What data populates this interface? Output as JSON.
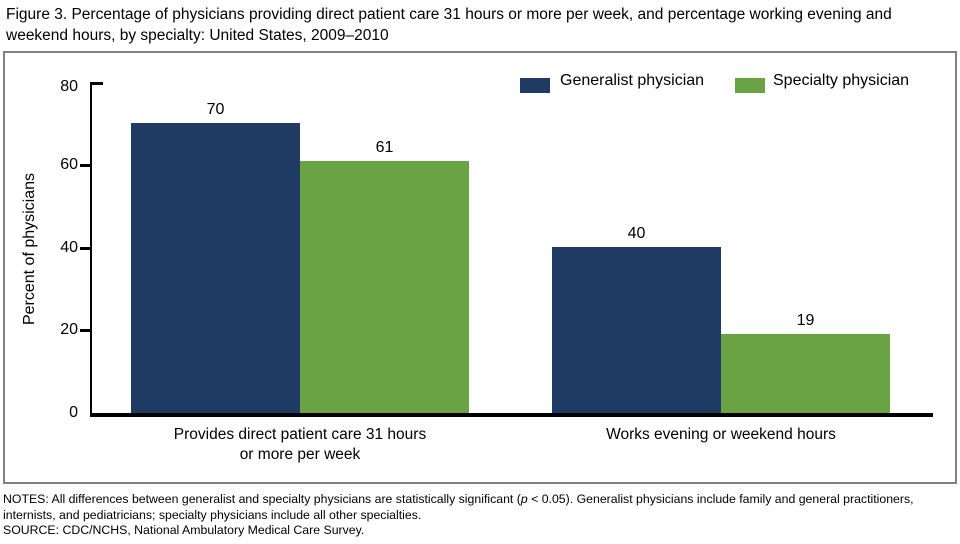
{
  "page": {
    "title": "Figure 3. Percentage of physicians providing direct patient care 31 hours or more per week, and percentage working evening and weekend hours, by specialty: United States, 2009–2010"
  },
  "chart_data": {
    "type": "bar",
    "title": "Figure 3. Percentage of physicians providing direct patient care 31 hours or more per week, and percentage working evening and weekend hours, by specialty: United States, 2009–2010",
    "categories": [
      "Provides direct patient care 31 hours or more per week",
      "Works evening or weekend hours"
    ],
    "category_label_lines": [
      [
        "Provides direct patient care 31 hours",
        "or more per week"
      ],
      [
        "Works evening or weekend hours"
      ]
    ],
    "series": [
      {
        "name": "Generalist physician",
        "color": "#1f3a63",
        "values": [
          70,
          40
        ]
      },
      {
        "name": "Specialty physician",
        "color": "#6aa343",
        "values": [
          61,
          19
        ]
      }
    ],
    "xlabel": "",
    "ylabel": "Percent of physicians",
    "ylim": [
      0,
      80
    ],
    "yticks": [
      0,
      20,
      40,
      60,
      80
    ],
    "grid": false,
    "legend_position": "top-right",
    "value_labels_shown": true
  },
  "notes": {
    "notes_before_p": "NOTES: All differences between generalist and specialty physicians are statistically significant (",
    "notes_p": "p",
    "notes_after_p": " < 0.05). Generalist physicians include family and general practitioners, internists, and pediatricians; specialty physicians include all other specialties.",
    "source": "SOURCE: CDC/NCHS, National Ambulatory Medical Care Survey."
  }
}
